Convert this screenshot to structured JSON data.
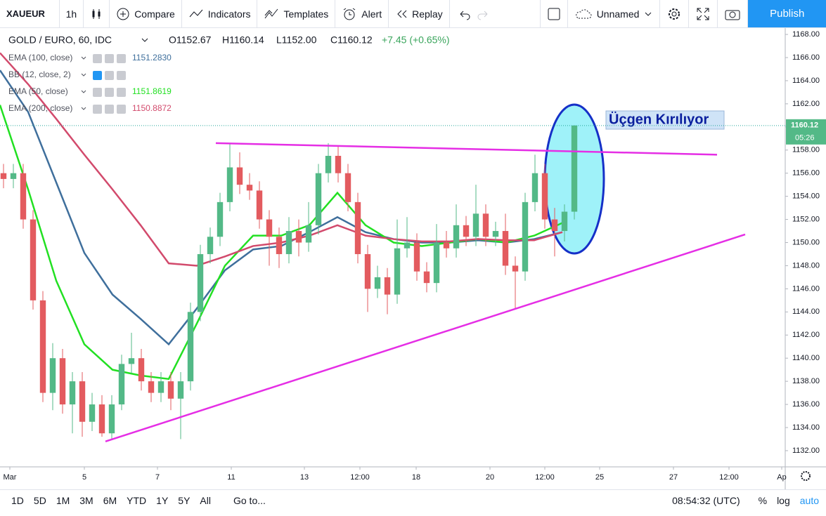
{
  "toolbar": {
    "symbol": "XAUEUR",
    "interval": "1h",
    "buttons": [
      "Compare",
      "Indicators",
      "Templates",
      "Alert",
      "Replay"
    ],
    "layout_name": "Unnamed",
    "publish": "Publish"
  },
  "bottom_bar": {
    "ranges": [
      "1D",
      "5D",
      "1M",
      "3M",
      "6M",
      "YTD",
      "1Y",
      "5Y",
      "All"
    ],
    "goto": "Go to...",
    "clock": "08:54:32 (UTC)",
    "options": [
      "%",
      "log",
      "auto"
    ]
  },
  "chart_data": {
    "type": "candlestick",
    "title": "GOLD / EURO, 60, IDC",
    "ohlc_legend": [
      "O1152.67",
      "H1160.14",
      "L1152.00",
      "C1160.12"
    ],
    "change": "+7.45 (+0.65%)",
    "up_color": "#53b987",
    "down_color": "#e35b5f",
    "x": [
      0.5,
      1.9,
      3.3,
      4.7,
      6.1,
      7.5,
      8.9,
      10.3,
      11.7,
      13.1,
      14.5,
      15.9,
      17.3,
      18.7,
      20.1,
      21.5,
      22.9,
      24.3,
      25.7,
      27.1,
      28.5,
      29.9,
      31.3,
      32.7,
      34.1,
      35.5,
      36.9,
      38.3,
      39.7,
      41.1,
      42.5,
      43.9,
      45.3,
      46.7,
      48.1,
      49.5,
      50.9,
      52.3,
      53.7,
      55.1,
      56.5,
      57.9,
      59.3,
      60.7,
      62.1,
      63.5,
      64.9,
      66.3,
      67.7,
      69.1,
      70.5,
      71.9,
      73.3,
      74.7,
      76.1,
      77.5,
      78.9,
      80.3,
      81.7
    ],
    "open": [
      1156,
      1155.5,
      1156,
      1152,
      1145,
      1137,
      1140,
      1136,
      1138,
      1134.5,
      1136,
      1133.5,
      1136,
      1139.5,
      1140,
      1138,
      1137,
      1138,
      1136.5,
      1138,
      1144,
      1149,
      1150.5,
      1153.5,
      1156.5,
      1155,
      1154.5,
      1152,
      1150.5,
      1149,
      1151,
      1150,
      1151.5,
      1156,
      1157.5,
      1156,
      1153.5,
      1149,
      1146,
      1147,
      1145.5,
      1149.5,
      1150,
      1147.5,
      1146.5,
      1150,
      1149.5,
      1151.5,
      1150.5,
      1152.5,
      1150.5,
      1151,
      1148,
      1147.5,
      1153.5,
      1156,
      1152,
      1151,
      1152.67
    ],
    "high": [
      1156.8,
      1156.8,
      1156.8,
      1152.8,
      1145.8,
      1141.3,
      1140.8,
      1138.8,
      1138.8,
      1137,
      1136.8,
      1136.8,
      1140.3,
      1142.2,
      1140.8,
      1138.8,
      1138.8,
      1138.8,
      1138.8,
      1144.8,
      1149.8,
      1151.3,
      1154.3,
      1158.5,
      1157.8,
      1156,
      1155.3,
      1152.8,
      1151.3,
      1152.2,
      1152,
      1153.5,
      1156.8,
      1158.6,
      1158.3,
      1156.8,
      1154.3,
      1149.8,
      1148,
      1147.8,
      1152,
      1152.2,
      1150.8,
      1148.3,
      1151.6,
      1151,
      1153.3,
      1152.3,
      1155,
      1153.3,
      1151.8,
      1152.5,
      1148.8,
      1154.3,
      1157.6,
      1156.8,
      1153,
      1153.3,
      1160.14
    ],
    "low": [
      1154.7,
      1154.7,
      1151.2,
      1144.2,
      1136.2,
      1135.5,
      1135.2,
      1133.5,
      1133.2,
      1133.7,
      1133.2,
      1133,
      1135.5,
      1138.7,
      1137.2,
      1136.2,
      1136.2,
      1135.5,
      1133,
      1137.2,
      1143.2,
      1148.2,
      1149.7,
      1152.7,
      1154.2,
      1153.7,
      1151.2,
      1148,
      1147.8,
      1148.2,
      1148.8,
      1149.2,
      1150.7,
      1155.2,
      1155.2,
      1152.7,
      1148.2,
      1144,
      1145.2,
      1143.8,
      1144.7,
      1148.7,
      1146.7,
      1145.7,
      1145.7,
      1148.7,
      1148.7,
      1149.7,
      1149.7,
      1149.7,
      1149.7,
      1147.2,
      1144.2,
      1146.7,
      1152.7,
      1151.2,
      1148.8,
      1150.1,
      1152.0
    ],
    "close": [
      1155.5,
      1156,
      1152,
      1145,
      1137,
      1140,
      1136,
      1138,
      1134.5,
      1136,
      1133.5,
      1136,
      1139.5,
      1140,
      1138,
      1137,
      1138,
      1136.5,
      1138,
      1144,
      1149,
      1150.5,
      1153.5,
      1156.5,
      1155,
      1154.5,
      1152,
      1150.5,
      1149,
      1151,
      1150,
      1151.5,
      1156,
      1157.5,
      1156,
      1153.5,
      1149,
      1146,
      1147,
      1145.5,
      1149.5,
      1150,
      1147.5,
      1146.5,
      1150,
      1149.5,
      1151.5,
      1150.5,
      1152.5,
      1150.5,
      1151,
      1148,
      1147.5,
      1153.5,
      1156,
      1152,
      1151,
      1152.67,
      1160.12
    ],
    "last_time": "05:26",
    "overlays": [
      {
        "name": "EMA (100, close)",
        "color": "#3f6f9c",
        "last": "1151.2830",
        "x": [
          0,
          4,
          8,
          12,
          16,
          20,
          24,
          28,
          32,
          36,
          40,
          44,
          48,
          52,
          56,
          60,
          64,
          68,
          72,
          76,
          80
        ],
        "values": [
          1164.9,
          1161.3,
          1155.2,
          1149.1,
          1145.5,
          1143.4,
          1141.2,
          1144.3,
          1147.6,
          1149.4,
          1149.7,
          1150.9,
          1152.2,
          1150.9,
          1150.3,
          1150,
          1150,
          1150.2,
          1150,
          1150.3,
          1150.9
        ]
      },
      {
        "name": "BB (12, close, 2)"
      },
      {
        "name": "EMA (50, close)",
        "color": "#22e022",
        "last": "1151.8619",
        "x": [
          0,
          4,
          8,
          12,
          16,
          20,
          24,
          28,
          32,
          36,
          40,
          44,
          48,
          52,
          56,
          60,
          64,
          68,
          72,
          76,
          80
        ],
        "values": [
          1161.9,
          1154.6,
          1146.7,
          1141.2,
          1139,
          1138.5,
          1138.2,
          1143,
          1148,
          1150.6,
          1150.6,
          1151.5,
          1154.3,
          1151.5,
          1150,
          1149.7,
          1150,
          1150.3,
          1150,
          1150.6,
          1151.7
        ]
      },
      {
        "name": "EMA (200, close)",
        "color": "#d24a6c",
        "last": "1150.8872",
        "x": [
          0,
          4,
          8,
          12,
          16,
          20,
          24,
          28,
          32,
          36,
          40,
          44,
          48,
          52,
          56,
          60,
          64,
          68,
          72,
          76,
          80
        ],
        "values": [
          1166.4,
          1163.7,
          1160.7,
          1157.6,
          1154.6,
          1151.5,
          1148.2,
          1148,
          1148.8,
          1149.7,
          1150,
          1150.6,
          1151.5,
          1150.6,
          1150.3,
          1150.1,
          1150.1,
          1150.3,
          1150.2,
          1150.2,
          1150.9
        ]
      }
    ],
    "trendlines": [
      {
        "color": "#e52ee5",
        "x": [
          30.7,
          102
        ],
        "y": [
          1158.6,
          1157.6
        ]
      },
      {
        "color": "#e52ee5",
        "x": [
          15,
          106
        ],
        "y": [
          1132.8,
          1150.7
        ]
      }
    ],
    "annotation": "Üçgen Kırılıyor",
    "xlim": [
      0,
      111.7
    ],
    "xticks": [
      {
        "value": 1.4,
        "label": "Mar"
      },
      {
        "value": 12,
        "label": "5"
      },
      {
        "value": 22.4,
        "label": "7"
      },
      {
        "value": 32.9,
        "label": "11"
      },
      {
        "value": 43.3,
        "label": "13"
      },
      {
        "value": 51.2,
        "label": "12:00"
      },
      {
        "value": 59.2,
        "label": "18"
      },
      {
        "value": 69.7,
        "label": "20"
      },
      {
        "value": 77.5,
        "label": "12:00"
      },
      {
        "value": 85.3,
        "label": "25"
      },
      {
        "value": 95.8,
        "label": "27"
      },
      {
        "value": 103.7,
        "label": "12:00"
      },
      {
        "value": 111.2,
        "label": "Ap"
      }
    ],
    "ylim": [
      1130.6,
      1168.55
    ],
    "yticks": [
      {
        "value": 1132,
        "label": "1132.00"
      },
      {
        "value": 1134,
        "label": "1134.00"
      },
      {
        "value": 1136,
        "label": "1136.00"
      },
      {
        "value": 1138,
        "label": "1138.00"
      },
      {
        "value": 1140,
        "label": "1140.00"
      },
      {
        "value": 1142,
        "label": "1142.00"
      },
      {
        "value": 1144,
        "label": "1144.00"
      },
      {
        "value": 1146,
        "label": "1146.00"
      },
      {
        "value": 1148,
        "label": "1148.00"
      },
      {
        "value": 1150,
        "label": "1150.00"
      },
      {
        "value": 1152,
        "label": "1152.00"
      },
      {
        "value": 1154,
        "label": "1154.00"
      },
      {
        "value": 1156,
        "label": "1156.00"
      },
      {
        "value": 1158,
        "label": "1158.00"
      },
      {
        "value": 1160,
        "label": "1160.00"
      },
      {
        "value": 1162,
        "label": "1162.00"
      },
      {
        "value": 1164,
        "label": "1164.00"
      },
      {
        "value": 1166,
        "label": "1166.00"
      },
      {
        "value": 1168,
        "label": "1168.00"
      }
    ]
  }
}
